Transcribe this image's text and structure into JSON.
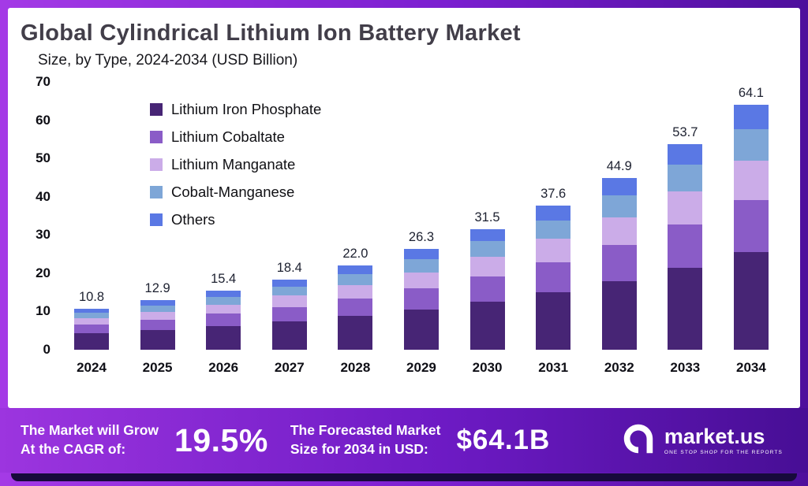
{
  "title": "Global Cylindrical Lithium Ion Battery Market",
  "subtitle": "Size, by Type, 2024-2034 (USD Billion)",
  "chart_data": {
    "type": "bar",
    "stacked": true,
    "title": "Global Cylindrical Lithium Ion Battery Market Size, by Type, 2024-2034 (USD Billion)",
    "categories": [
      "2024",
      "2025",
      "2026",
      "2027",
      "2028",
      "2029",
      "2030",
      "2031",
      "2032",
      "2033",
      "2034"
    ],
    "totals": [
      10.8,
      12.9,
      15.4,
      18.4,
      22.0,
      26.3,
      31.5,
      37.6,
      44.9,
      53.7,
      64.1
    ],
    "total_labels": [
      "10.8",
      "12.9",
      "15.4",
      "18.4",
      "22.0",
      "26.3",
      "31.5",
      "37.6",
      "44.9",
      "53.7",
      "64.1"
    ],
    "series": [
      {
        "name": "Lithium Iron Phosphate",
        "color": "#472575",
        "values": [
          4.32,
          5.16,
          6.16,
          7.36,
          8.8,
          10.52,
          12.6,
          15.04,
          17.96,
          21.48,
          25.64
        ]
      },
      {
        "name": "Lithium Cobaltate",
        "color": "#8a5cc7",
        "values": [
          2.27,
          2.71,
          3.23,
          3.86,
          4.62,
          5.52,
          6.62,
          7.9,
          9.43,
          11.28,
          13.46
        ]
      },
      {
        "name": "Lithium Manganate",
        "color": "#cbace8",
        "values": [
          1.73,
          2.06,
          2.46,
          2.94,
          3.52,
          4.21,
          5.04,
          6.02,
          7.18,
          8.59,
          10.26
        ]
      },
      {
        "name": "Cobalt-Manganese",
        "color": "#7ea6d7",
        "values": [
          1.4,
          1.68,
          2.0,
          2.39,
          2.86,
          3.42,
          4.1,
          4.89,
          5.84,
          6.98,
          8.33
        ]
      },
      {
        "name": "Others",
        "color": "#5a78e4",
        "values": [
          1.08,
          1.29,
          1.54,
          1.84,
          2.2,
          2.63,
          3.15,
          3.76,
          4.49,
          5.37,
          6.41
        ]
      }
    ],
    "xlabel": "",
    "ylabel": "",
    "ylim": [
      0,
      70
    ],
    "y_ticks": [
      0,
      10,
      20,
      30,
      40,
      50,
      60,
      70
    ],
    "grid": false,
    "legend_position": "upper-left"
  },
  "banner": {
    "cagr_label_line1": "The Market will Grow",
    "cagr_label_line2": "At the CAGR of:",
    "cagr_value": "19.5%",
    "forecast_label_line1": "The Forecasted Market",
    "forecast_label_line2": "Size for 2034 in USD:",
    "forecast_value": "$64.1B",
    "brand": "market.us",
    "brand_tagline": "ONE STOP SHOP FOR THE REPORTS"
  },
  "colors": {
    "frame_left": "#a43ae6",
    "frame_right": "#4d0f9c",
    "card_background": "#ffffff",
    "title_text": "#423e49",
    "banner_text": "#ffffff",
    "bottom_strip": "#170a3c"
  }
}
